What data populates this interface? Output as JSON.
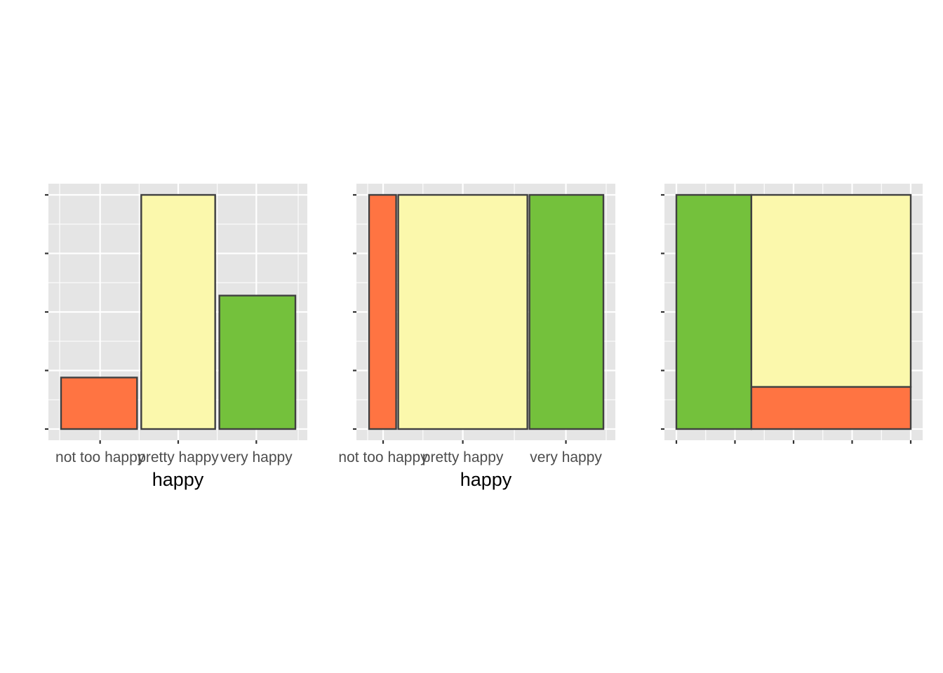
{
  "colors": {
    "not_too_happy": "#ff7442",
    "pretty_happy": "#fbf8ac",
    "very_happy": "#74c13c",
    "panel_background": "#e5e5e5",
    "gridlines": "#ffffff",
    "bar_outline": "#404040"
  },
  "chart_data": [
    {
      "type": "bar",
      "xlabel": "happy",
      "ylabel": "",
      "categories": [
        "not too happy",
        "pretty happy",
        "very happy"
      ],
      "values": [
        0.22,
        1.0,
        0.57
      ],
      "ylim": [
        0,
        1
      ],
      "grid": true,
      "y_tick_labels_shown": false
    },
    {
      "type": "bar",
      "variant": "variable-width",
      "xlabel": "happy",
      "ylabel": "",
      "categories": [
        "not too happy",
        "pretty happy",
        "very happy"
      ],
      "widths": [
        0.12,
        0.56,
        0.32
      ],
      "values": [
        1.0,
        1.0,
        1.0
      ],
      "ylim": [
        0,
        1
      ],
      "grid": true,
      "y_tick_labels_shown": false
    },
    {
      "type": "bar",
      "variant": "mosaic",
      "xlabel": "",
      "ylabel": "",
      "columns": [
        {
          "width": 0.32,
          "segments": [
            {
              "category": "very happy",
              "value": 1.0
            }
          ]
        },
        {
          "width": 0.68,
          "segments": [
            {
              "category": "not too happy",
              "value": 0.18
            },
            {
              "category": "pretty happy",
              "value": 0.82
            }
          ]
        }
      ],
      "xlim": [
        0,
        1
      ],
      "ylim": [
        0,
        1
      ],
      "grid": true,
      "x_tick_labels_shown": false,
      "y_tick_labels_shown": false
    }
  ]
}
